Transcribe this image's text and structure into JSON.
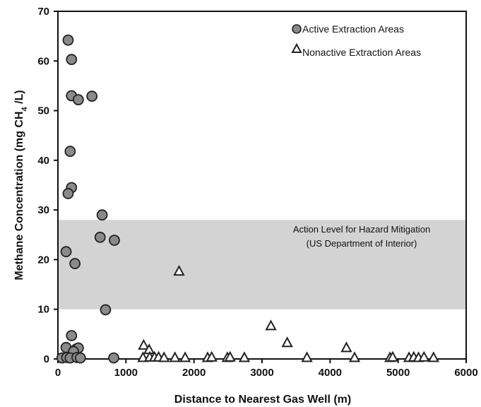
{
  "chart_data": {
    "type": "scatter",
    "xlabel": "Distance to Nearest Gas Well (m)",
    "ylabel_parts": [
      "Methane Concentration (mg CH",
      "4",
      " /L)"
    ],
    "xlim": [
      0,
      6000
    ],
    "ylim": [
      0,
      70
    ],
    "xticks": [
      0,
      1000,
      2000,
      3000,
      4000,
      5000,
      6000
    ],
    "yticks": [
      0,
      10,
      20,
      30,
      40,
      50,
      60,
      70
    ],
    "grid": false,
    "legend_position": "top-right",
    "band": {
      "y_from": 10,
      "y_to": 28,
      "color": "#d3d3d3",
      "label_line1": "Action Level for Hazard Mitigation",
      "label_line2": "(US Department of Interior)"
    },
    "series": [
      {
        "name": "Active Extraction Areas",
        "marker": "circle",
        "color": "#8a8a8a",
        "points": [
          [
            150,
            64.2
          ],
          [
            200,
            60.3
          ],
          [
            200,
            53.0
          ],
          [
            300,
            52.2
          ],
          [
            500,
            52.9
          ],
          [
            180,
            41.8
          ],
          [
            200,
            34.5
          ],
          [
            150,
            33.3
          ],
          [
            650,
            29.0
          ],
          [
            620,
            24.5
          ],
          [
            830,
            23.9
          ],
          [
            120,
            21.6
          ],
          [
            250,
            19.2
          ],
          [
            700,
            9.9
          ],
          [
            200,
            4.7
          ],
          [
            120,
            2.3
          ],
          [
            270,
            2.0
          ],
          [
            300,
            2.2
          ],
          [
            230,
            1.5
          ],
          [
            60,
            0.2
          ],
          [
            130,
            0.3
          ],
          [
            180,
            0.2
          ],
          [
            280,
            0.3
          ],
          [
            330,
            0.2
          ],
          [
            820,
            0.2
          ]
        ]
      },
      {
        "name": "Nonactive Extraction Areas",
        "marker": "triangle",
        "color": "#ffffff",
        "points": [
          [
            1780,
            17.6
          ],
          [
            3130,
            6.6
          ],
          [
            3370,
            3.2
          ],
          [
            4240,
            2.2
          ],
          [
            1260,
            2.7
          ],
          [
            1340,
            1.8
          ],
          [
            1250,
            0.2
          ],
          [
            1350,
            0.3
          ],
          [
            1420,
            0.3
          ],
          [
            1480,
            0.3
          ],
          [
            1560,
            0.2
          ],
          [
            1720,
            0.2
          ],
          [
            1870,
            0.2
          ],
          [
            2200,
            0.2
          ],
          [
            2260,
            0.3
          ],
          [
            2490,
            0.2
          ],
          [
            2530,
            0.3
          ],
          [
            2740,
            0.2
          ],
          [
            3660,
            0.2
          ],
          [
            4360,
            0.2
          ],
          [
            4880,
            0.2
          ],
          [
            4920,
            0.3
          ],
          [
            5160,
            0.2
          ],
          [
            5230,
            0.3
          ],
          [
            5300,
            0.2
          ],
          [
            5380,
            0.3
          ],
          [
            5520,
            0.2
          ]
        ]
      }
    ]
  }
}
